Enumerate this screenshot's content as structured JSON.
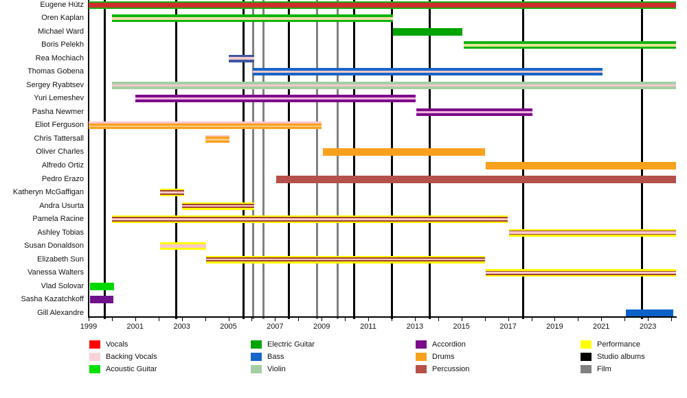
{
  "chart_data": {
    "type": "timeline",
    "x_axis": {
      "start_year": 1999,
      "end_year": 2024,
      "tick_labels": [
        "1999",
        "2001",
        "2003",
        "2005",
        "2007",
        "2009",
        "2011",
        "2013",
        "2015",
        "2017",
        "2019",
        "2021",
        "2023"
      ],
      "minor_tick_every_years": 1
    },
    "event_lines": {
      "studio_albums": {
        "color": "#000000",
        "years": [
          1999.7,
          2002.75,
          2005.65,
          2007.6,
          2010.4,
          2012.0,
          2013.65,
          2017.65,
          2022.75
        ]
      },
      "films": {
        "color": "#808080",
        "years": [
          2006.05,
          2006.5,
          2008.8,
          2009.7
        ]
      }
    },
    "members": [
      {
        "name": "Eugene Hütz",
        "segments": [
          {
            "start": 1999.0,
            "end": 2024.2,
            "stripes": [
              {
                "c": "#12b212",
                "w": 1
              },
              {
                "c": "#cf2d2d",
                "w": 3.2
              },
              {
                "c": "#12b212",
                "w": 1
              }
            ]
          }
        ]
      },
      {
        "name": "Oren Kaplan",
        "segments": [
          {
            "start": 2000.0,
            "end": 2012.05,
            "stripes": [
              {
                "c": "#0db50d",
                "w": 1
              },
              {
                "c": "#f4dcaa",
                "w": 1
              },
              {
                "c": "#0db50d",
                "w": 1
              }
            ]
          }
        ]
      },
      {
        "name": "Michael Ward",
        "segments": [
          {
            "start": 2012.05,
            "end": 2015.05,
            "stripes": [
              {
                "c": "#00a400",
                "w": 1
              }
            ]
          }
        ]
      },
      {
        "name": "Boris Pelekh",
        "segments": [
          {
            "start": 2015.1,
            "end": 2024.2,
            "stripes": [
              {
                "c": "#12b212",
                "w": 1
              },
              {
                "c": "#e3e795",
                "w": 1
              },
              {
                "c": "#12b212",
                "w": 1
              }
            ]
          }
        ]
      },
      {
        "name": "Rea Mochiach",
        "segments": [
          {
            "start": 2005.0,
            "end": 2006.1,
            "stripes": [
              {
                "c": "#3c58a0",
                "w": 1
              },
              {
                "c": "#f8c8cc",
                "w": 1.2
              },
              {
                "c": "#3c58a0",
                "w": 1
              }
            ]
          }
        ]
      },
      {
        "name": "Thomas Gobena",
        "segments": [
          {
            "start": 2006.05,
            "end": 2021.05,
            "stripes": [
              {
                "c": "#1565c8",
                "w": 1.2
              },
              {
                "c": "#f8c8cc",
                "w": 1
              },
              {
                "c": "#1565c8",
                "w": 1.2
              }
            ]
          }
        ]
      },
      {
        "name": "Sergey Ryabtsev",
        "segments": [
          {
            "start": 2000.0,
            "end": 2024.2,
            "stripes": [
              {
                "c": "#a5cda5",
                "w": 1.1
              },
              {
                "c": "#f8c8cc",
                "w": 1
              },
              {
                "c": "#a5cda5",
                "w": 1.1
              }
            ]
          }
        ]
      },
      {
        "name": "Yuri Lemeshev",
        "segments": [
          {
            "start": 2001.0,
            "end": 2013.05,
            "stripes": [
              {
                "c": "#7c0a8a",
                "w": 1.2
              },
              {
                "c": "#f4b4dc",
                "w": 1
              },
              {
                "c": "#7c0a8a",
                "w": 1.2
              }
            ]
          }
        ]
      },
      {
        "name": "Pasha Newmer",
        "segments": [
          {
            "start": 2013.05,
            "end": 2018.05,
            "stripes": [
              {
                "c": "#7c0a8a",
                "w": 1.2
              },
              {
                "c": "#f4b4dc",
                "w": 1
              },
              {
                "c": "#7c0a8a",
                "w": 1.2
              }
            ]
          }
        ]
      },
      {
        "name": "Eliot Ferguson",
        "segments": [
          {
            "start": 1999.0,
            "end": 2009.0,
            "stripes": [
              {
                "c": "#f8c8cc",
                "w": 1
              },
              {
                "c": "#f7a11c",
                "w": 1.2
              },
              {
                "c": "#fcc880",
                "w": 1
              },
              {
                "c": "#f7a11c",
                "w": 1.2
              }
            ]
          }
        ]
      },
      {
        "name": "Chris Tattersall",
        "segments": [
          {
            "start": 2004.0,
            "end": 2005.05,
            "stripes": [
              {
                "c": "#f8c8cc",
                "w": 1
              },
              {
                "c": "#f7a11c",
                "w": 1.2
              },
              {
                "c": "#fcc880",
                "w": 1
              },
              {
                "c": "#f7a11c",
                "w": 1.2
              }
            ]
          }
        ]
      },
      {
        "name": "Oliver Charles",
        "segments": [
          {
            "start": 2009.05,
            "end": 2016.0,
            "stripes": [
              {
                "c": "#f7a11c",
                "w": 1
              }
            ]
          }
        ]
      },
      {
        "name": "Alfredo Ortiz",
        "segments": [
          {
            "start": 2016.05,
            "end": 2024.2,
            "stripes": [
              {
                "c": "#f7a11c",
                "w": 1
              }
            ]
          }
        ]
      },
      {
        "name": "Pedro Erazo",
        "segments": [
          {
            "start": 2007.05,
            "end": 2024.2,
            "stripes": [
              {
                "c": "#b5504a",
                "w": 1
              }
            ]
          }
        ]
      },
      {
        "name": "Katheryn McGaffigan",
        "segments": [
          {
            "start": 2002.05,
            "end": 2003.1,
            "stripes": [
              {
                "c": "#ffff00",
                "w": 1
              },
              {
                "c": "#a04030",
                "w": 0.7
              },
              {
                "c": "#f8c8cc",
                "w": 1.1
              },
              {
                "c": "#a04030",
                "w": 0.7
              },
              {
                "c": "#ffff00",
                "w": 1
              }
            ]
          }
        ]
      },
      {
        "name": "Andra Usurta",
        "segments": [
          {
            "start": 2003.0,
            "end": 2006.1,
            "stripes": [
              {
                "c": "#ffff00",
                "w": 1
              },
              {
                "c": "#a04030",
                "w": 0.7
              },
              {
                "c": "#f8c8cc",
                "w": 1.1
              },
              {
                "c": "#a04030",
                "w": 0.7
              },
              {
                "c": "#ffff00",
                "w": 1
              }
            ]
          }
        ]
      },
      {
        "name": "Pamela Racine",
        "segments": [
          {
            "start": 2000.0,
            "end": 2017.0,
            "stripes": [
              {
                "c": "#ffff00",
                "w": 1
              },
              {
                "c": "#a04030",
                "w": 0.7
              },
              {
                "c": "#f8c8cc",
                "w": 1.1
              },
              {
                "c": "#a04030",
                "w": 0.7
              },
              {
                "c": "#ffff00",
                "w": 1
              }
            ]
          }
        ]
      },
      {
        "name": "Ashley Tobias",
        "segments": [
          {
            "start": 2017.05,
            "end": 2024.2,
            "stripes": [
              {
                "c": "#ffff00",
                "w": 1
              },
              {
                "c": "#a04030",
                "w": 0.5
              },
              {
                "c": "#f8c8cc",
                "w": 1.4
              },
              {
                "c": "#a04030",
                "w": 0.5
              },
              {
                "c": "#ffff00",
                "w": 1
              }
            ]
          }
        ]
      },
      {
        "name": "Susan Donaldson",
        "segments": [
          {
            "start": 2002.05,
            "end": 2004.05,
            "stripes": [
              {
                "c": "#ffff00",
                "w": 1
              },
              {
                "c": "#f8c8cc",
                "w": 1.8
              },
              {
                "c": "#ffff00",
                "w": 1
              }
            ]
          }
        ]
      },
      {
        "name": "Elizabeth Sun",
        "segments": [
          {
            "start": 2004.05,
            "end": 2016.0,
            "stripes": [
              {
                "c": "#ffff00",
                "w": 1
              },
              {
                "c": "#a04030",
                "w": 0.7
              },
              {
                "c": "#f8c8cc",
                "w": 1.1
              },
              {
                "c": "#a04030",
                "w": 0.7
              },
              {
                "c": "#ffff00",
                "w": 1
              }
            ]
          }
        ]
      },
      {
        "name": "Vanessa Walters",
        "segments": [
          {
            "start": 2016.05,
            "end": 2024.2,
            "stripes": [
              {
                "c": "#ffff00",
                "w": 1
              },
              {
                "c": "#a04030",
                "w": 0.7
              },
              {
                "c": "#f8c8cc",
                "w": 1.1
              },
              {
                "c": "#a04030",
                "w": 0.7
              },
              {
                "c": "#ffff00",
                "w": 1
              }
            ]
          }
        ]
      },
      {
        "name": "Vlad Solovar",
        "segments": [
          {
            "start": 1999.05,
            "end": 2000.1,
            "stripes": [
              {
                "c": "#00d800",
                "w": 1
              }
            ]
          }
        ]
      },
      {
        "name": "Sasha Kazatchkoff",
        "segments": [
          {
            "start": 1999.05,
            "end": 2000.05,
            "stripes": [
              {
                "c": "#70128c",
                "w": 1
              }
            ]
          }
        ]
      },
      {
        "name": "Gill Alexandre",
        "segments": [
          {
            "start": 2022.05,
            "end": 2024.1,
            "stripes": [
              {
                "c": "#0b62c8",
                "w": 1
              }
            ]
          }
        ]
      }
    ],
    "legend": {
      "columns": [
        [
          {
            "label": "Vocals",
            "color": "#ff0000"
          },
          {
            "label": "Backing Vocals",
            "color": "#f8d4d8"
          },
          {
            "label": "Acoustic Guitar",
            "color": "#00e000"
          }
        ],
        [
          {
            "label": "Electric Guitar",
            "color": "#00a400"
          },
          {
            "label": "Bass",
            "color": "#1565c8"
          },
          {
            "label": "Violin",
            "color": "#a5cda5"
          }
        ],
        [
          {
            "label": "Accordion",
            "color": "#7c0a8a"
          },
          {
            "label": "Drums",
            "color": "#f7a11c"
          },
          {
            "label": "Percussion",
            "color": "#b5504a"
          }
        ],
        [
          {
            "label": "Performance",
            "color": "#ffff00"
          },
          {
            "label": "Studio albums",
            "color": "#000000"
          },
          {
            "label": "Film",
            "color": "#808080"
          }
        ]
      ]
    }
  }
}
